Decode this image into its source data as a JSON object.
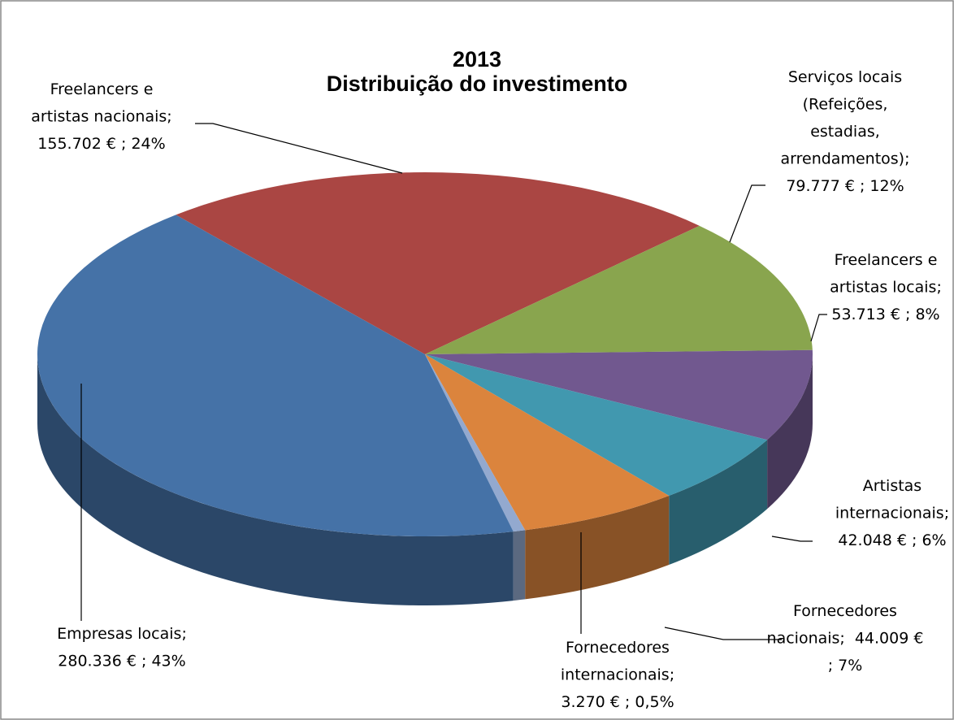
{
  "chart_data": {
    "type": "pie",
    "title": [
      "2013",
      "Distribuição do investimento"
    ],
    "categories": [
      [
        "Freelancers e",
        "artistas nacionais;"
      ],
      [
        "Serviços locais",
        "(Refeições,",
        "estadias,",
        "arrendamentos);"
      ],
      [
        "Freelancers e",
        "artistas locais;"
      ],
      [
        "Artistas",
        "internacionais;"
      ],
      [
        "Fornecedores",
        "nacionais;"
      ],
      [
        "Fornecedores",
        "internacionais;"
      ],
      [
        "Empresas locais;"
      ]
    ],
    "values": [
      155702,
      79777,
      53713,
      42048,
      44009,
      3270,
      280336
    ],
    "value_labels": [
      [
        "155.702 € ; 24%"
      ],
      [
        "79.777 € ; 12%"
      ],
      [
        "53.713 € ; 8%"
      ],
      [
        "42.048 € ; 6%"
      ],
      [
        "44.009 €",
        "; 7%"
      ],
      [
        "3.270 € ; 0,5%"
      ],
      [
        "280.336 € ; 43%"
      ]
    ],
    "colors": [
      "#aa4643",
      "#89a54e",
      "#71588f",
      "#4198af",
      "#db843d",
      "#93a9cf",
      "#4572a7"
    ]
  }
}
